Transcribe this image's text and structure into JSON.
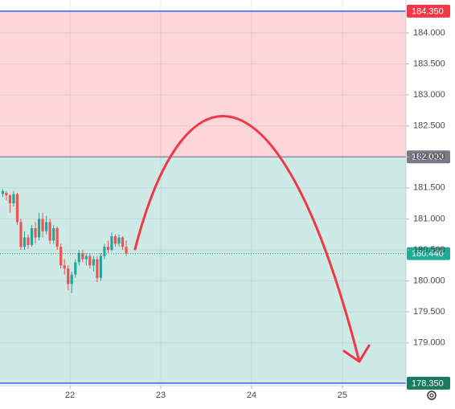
{
  "chart_data": {
    "type": "candlestick",
    "xlim": [
      21.23,
      25.7
    ],
    "ylim": [
      178.31,
      184.53
    ],
    "xticks": [
      22,
      23,
      24,
      25
    ],
    "yticks": [
      {
        "value": 179,
        "label": "179.000"
      },
      {
        "value": 179.5,
        "label": "179.500"
      },
      {
        "value": 180,
        "label": "180.000"
      },
      {
        "value": 180.5,
        "label": "180.500"
      },
      {
        "value": 181,
        "label": "181.000"
      },
      {
        "value": 181.5,
        "label": "181.500"
      },
      {
        "value": 182,
        "label": "182.000"
      },
      {
        "value": 182.5,
        "label": "182.500"
      },
      {
        "value": 183,
        "label": "183.000"
      },
      {
        "value": 183.5,
        "label": "183.500"
      },
      {
        "value": 184,
        "label": "184.000"
      }
    ],
    "grid": true,
    "up_color": "#26a69a",
    "down_color": "#ef5350",
    "zones": [
      {
        "from": 182,
        "to": 184.35,
        "color": "#fdd6da"
      },
      {
        "from": 178.35,
        "to": 182,
        "color": "#cdeae6"
      }
    ],
    "levels": [
      {
        "value": 184.35,
        "label": "184.350",
        "line_color": "#2962ff",
        "box_color": "#f23645"
      },
      {
        "value": 182,
        "label": "182.000",
        "line_color": "#8a8fa0",
        "box_color": "#787b86"
      },
      {
        "value": 180.44,
        "label": "180.440",
        "line_color": "#22ab94",
        "box_color": "#22ab94",
        "dashed": true
      },
      {
        "value": 178.35,
        "label": "178.350",
        "line_color": "#2962ff",
        "box_color": "#1b7a5e"
      }
    ],
    "x": [
      21.26,
      21.3,
      21.34,
      21.38,
      21.42,
      21.46,
      21.5,
      21.54,
      21.58,
      21.62,
      21.66,
      21.7,
      21.74,
      21.78,
      21.82,
      21.86,
      21.9,
      21.94,
      21.98,
      22.02,
      22.06,
      22.1,
      22.14,
      22.18,
      22.22,
      22.26,
      22.3,
      22.34,
      22.38,
      22.42,
      22.46,
      22.5,
      22.54,
      22.58,
      22.62
    ],
    "open": [
      181.4,
      181.42,
      181.38,
      181.25,
      181.4,
      180.95,
      180.55,
      180.7,
      180.58,
      180.85,
      180.7,
      181.0,
      180.8,
      180.95,
      180.65,
      180.85,
      180.55,
      180.25,
      180.2,
      179.95,
      180.1,
      180.3,
      180.45,
      180.35,
      180.4,
      180.25,
      180.35,
      180.05,
      180.4,
      180.55,
      180.5,
      180.72,
      180.6,
      180.7,
      180.55
    ],
    "high": [
      181.48,
      181.45,
      181.4,
      181.45,
      181.42,
      181.0,
      180.8,
      180.75,
      180.9,
      180.95,
      181.1,
      181.1,
      181.05,
      181.0,
      180.9,
      180.88,
      180.6,
      180.35,
      180.25,
      180.15,
      180.35,
      180.5,
      180.5,
      180.45,
      180.45,
      180.4,
      180.4,
      180.45,
      180.6,
      180.65,
      180.78,
      180.75,
      180.75,
      180.72,
      180.65
    ],
    "low": [
      181.35,
      181.3,
      181.1,
      181.2,
      180.9,
      180.5,
      180.5,
      180.52,
      180.55,
      180.6,
      180.65,
      180.7,
      180.75,
      180.6,
      180.6,
      180.5,
      180.2,
      180.1,
      179.85,
      179.8,
      180.05,
      180.25,
      180.3,
      180.25,
      180.2,
      180.15,
      179.98,
      180.0,
      180.35,
      180.45,
      180.48,
      180.55,
      180.55,
      180.5,
      180.4
    ],
    "close": [
      181.45,
      181.38,
      181.25,
      181.4,
      180.95,
      180.55,
      180.7,
      180.58,
      180.85,
      180.7,
      181.0,
      180.8,
      180.95,
      180.65,
      180.85,
      180.55,
      180.25,
      180.2,
      179.95,
      180.1,
      180.3,
      180.45,
      180.35,
      180.4,
      180.25,
      180.35,
      180.05,
      180.4,
      180.55,
      180.5,
      180.72,
      180.6,
      180.7,
      180.55,
      180.44
    ]
  }
}
